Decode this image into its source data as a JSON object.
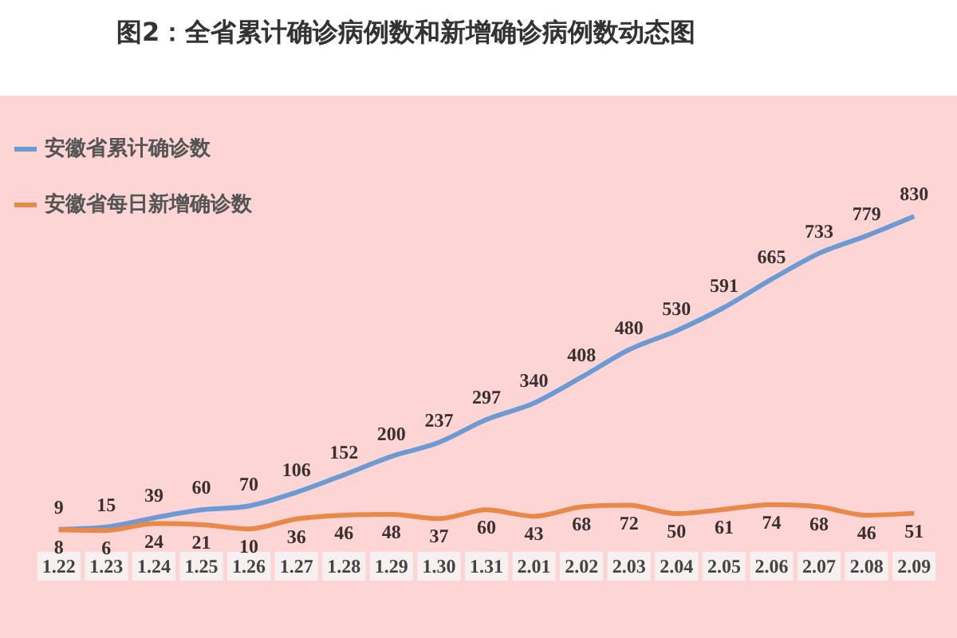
{
  "chart_data": {
    "type": "line",
    "title": "图2：全省累计确诊病例数和新增确诊病例数动态图",
    "categories": [
      "1.22",
      "1.23",
      "1.24",
      "1.25",
      "1.26",
      "1.27",
      "1.28",
      "1.29",
      "1.30",
      "1.31",
      "2.01",
      "2.02",
      "2.03",
      "2.04",
      "2.05",
      "2.06",
      "2.07",
      "2.08",
      "2.09"
    ],
    "series": [
      {
        "name": "安徽省累计确诊数",
        "color": "#6b9bd2",
        "values": [
          9,
          15,
          39,
          60,
          70,
          106,
          152,
          200,
          237,
          297,
          340,
          408,
          480,
          530,
          591,
          665,
          733,
          779,
          830
        ]
      },
      {
        "name": "安徽省每日新增确诊数",
        "color": "#e8894a",
        "values": [
          8,
          6,
          24,
          21,
          10,
          36,
          46,
          48,
          37,
          60,
          43,
          68,
          72,
          50,
          61,
          74,
          68,
          46,
          51
        ]
      }
    ],
    "data_labels": true,
    "legend": "top left",
    "grid": false,
    "marker": "none",
    "line_style": "solid"
  }
}
